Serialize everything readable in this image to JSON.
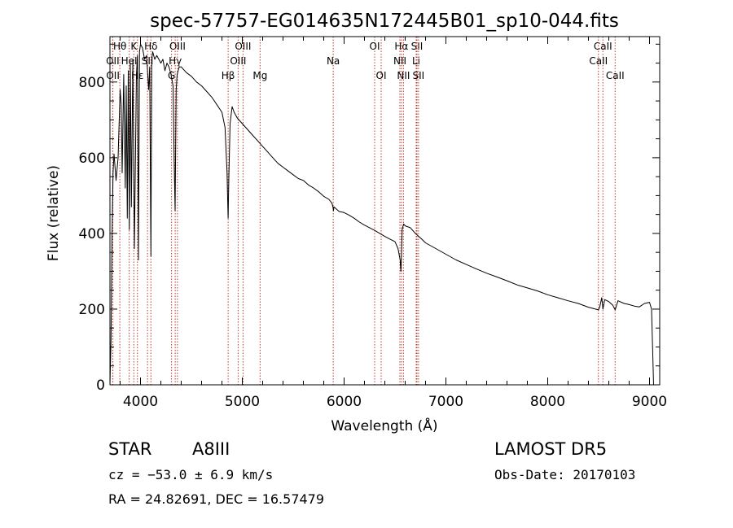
{
  "chart_data": {
    "type": "line",
    "title": "spec-57757-EG014635N172445B01_sp10-044.fits",
    "xlabel": "Wavelength (Å)",
    "ylabel": "Flux (relative)",
    "xlim": [
      3700,
      9100
    ],
    "ylim": [
      0,
      920
    ],
    "xticks": [
      4000,
      5000,
      6000,
      7000,
      8000,
      9000
    ],
    "yticks": [
      0,
      200,
      400,
      600,
      800
    ],
    "grid": false,
    "series": [
      {
        "x": [
          3700,
          3710,
          3720,
          3730,
          3740,
          3760,
          3780,
          3800,
          3810,
          3820,
          3835,
          3850,
          3860,
          3870,
          3880,
          3890,
          3900,
          3910,
          3925,
          3940,
          3960,
          3970,
          3980,
          3990,
          4000,
          4020,
          4040,
          4060,
          4080,
          4090,
          4102,
          4110,
          4120,
          4140,
          4160,
          4180,
          4200,
          4220,
          4240,
          4260,
          4280,
          4300,
          4320,
          4330,
          4340,
          4350,
          4360,
          4380,
          4400,
          4450,
          4500,
          4550,
          4600,
          4650,
          4700,
          4750,
          4800,
          4830,
          4850,
          4855,
          4861,
          4868,
          4880,
          4900,
          4920,
          4950,
          5000,
          5050,
          5100,
          5150,
          5200,
          5250,
          5300,
          5350,
          5400,
          5450,
          5500,
          5550,
          5600,
          5650,
          5700,
          5750,
          5800,
          5850,
          5880,
          5890,
          5895,
          5900,
          5950,
          6000,
          6050,
          6100,
          6150,
          6200,
          6250,
          6300,
          6350,
          6400,
          6450,
          6500,
          6530,
          6550,
          6558,
          6563,
          6570,
          6585,
          6600,
          6650,
          6700,
          6750,
          6800,
          6900,
          7000,
          7100,
          7200,
          7300,
          7400,
          7500,
          7600,
          7700,
          7800,
          7900,
          8000,
          8100,
          8200,
          8300,
          8400,
          8498,
          8510,
          8530,
          8542,
          8560,
          8600,
          8640,
          8662,
          8690,
          8750,
          8800,
          8850,
          8900,
          8950,
          9000,
          9020,
          9040
        ],
        "values": [
          0,
          120,
          380,
          560,
          610,
          540,
          600,
          780,
          740,
          560,
          820,
          520,
          790,
          440,
          830,
          410,
          850,
          470,
          860,
          360,
          820,
          870,
          330,
          880,
          900,
          890,
          860,
          870,
          780,
          840,
          340,
          860,
          880,
          860,
          870,
          860,
          850,
          860,
          830,
          850,
          840,
          820,
          790,
          600,
          460,
          780,
          820,
          840,
          840,
          825,
          815,
          800,
          790,
          775,
          760,
          740,
          720,
          680,
          560,
          500,
          440,
          550,
          690,
          735,
          720,
          705,
          690,
          675,
          660,
          645,
          630,
          615,
          600,
          585,
          575,
          565,
          555,
          545,
          540,
          528,
          520,
          510,
          498,
          490,
          480,
          470,
          460,
          470,
          458,
          455,
          448,
          440,
          430,
          422,
          415,
          408,
          400,
          392,
          385,
          378,
          360,
          330,
          300,
          340,
          410,
          425,
          420,
          415,
          400,
          388,
          375,
          360,
          345,
          330,
          318,
          306,
          295,
          285,
          275,
          264,
          256,
          248,
          238,
          230,
          222,
          215,
          205,
          198,
          205,
          230,
          200,
          225,
          220,
          210,
          198,
          222,
          215,
          212,
          208,
          206,
          215,
          218,
          200,
          0
        ]
      }
    ],
    "line_markers": [
      {
        "label": "Hθ",
        "wavelength": 3797,
        "row": 0
      },
      {
        "label": "OII",
        "wavelength": 3727,
        "row": 1
      },
      {
        "label": "OII",
        "wavelength": 3729,
        "row": 2
      },
      {
        "label": "K",
        "wavelength": 3934,
        "row": 0
      },
      {
        "label": "HeI",
        "wavelength": 3889,
        "row": 1
      },
      {
        "label": "Hε",
        "wavelength": 3970,
        "row": 2
      },
      {
        "label": "Hδ",
        "wavelength": 4102,
        "row": 0
      },
      {
        "label": "SII",
        "wavelength": 4069,
        "row": 1
      },
      {
        "label": "G",
        "wavelength": 4305,
        "row": 2
      },
      {
        "label": "OIII",
        "wavelength": 4363,
        "row": 0
      },
      {
        "label": "Hγ",
        "wavelength": 4341,
        "row": 1
      },
      {
        "label": "Hβ",
        "wavelength": 4861,
        "row": 2
      },
      {
        "label": "OIII",
        "wavelength": 5007,
        "row": 0
      },
      {
        "label": "OIII",
        "wavelength": 4959,
        "row": 1
      },
      {
        "label": "Mg",
        "wavelength": 5175,
        "row": 2
      },
      {
        "label": "Na",
        "wavelength": 5893,
        "row": 1
      },
      {
        "label": "OI",
        "wavelength": 6300,
        "row": 0
      },
      {
        "label": "OI",
        "wavelength": 6364,
        "row": 2
      },
      {
        "label": "Hα",
        "wavelength": 6563,
        "row": 0
      },
      {
        "label": "NII",
        "wavelength": 6548,
        "row": 1
      },
      {
        "label": "NII",
        "wavelength": 6583,
        "row": 2
      },
      {
        "label": "SII",
        "wavelength": 6716,
        "row": 0
      },
      {
        "label": "Li",
        "wavelength": 6708,
        "row": 1
      },
      {
        "label": "SII",
        "wavelength": 6731,
        "row": 2
      },
      {
        "label": "CaII",
        "wavelength": 8542,
        "row": 0
      },
      {
        "label": "CaII",
        "wavelength": 8498,
        "row": 1
      },
      {
        "label": "CaII",
        "wavelength": 8662,
        "row": 2
      }
    ]
  },
  "info": {
    "object_class": "STAR",
    "subclass": "A8III",
    "survey": "LAMOST  DR5",
    "cz": "cz = −53.0 ± 6.9 km/s",
    "obs_date": "Obs-Date: 20170103",
    "coords": "RA =  24.82691, DEC =  16.57479"
  }
}
